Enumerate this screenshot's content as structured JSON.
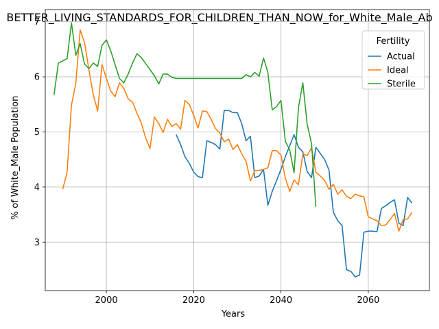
{
  "chart_data": {
    "type": "line",
    "title": "BETTER_LIVING_STANDARDS_FOR_CHILDREN_THAN_NOW_for_White_Male_Ab",
    "xlabel": "Years",
    "ylabel": "% of White_Male Population",
    "xlim": [
      1986,
      2074
    ],
    "ylim": [
      2.12,
      7.22
    ],
    "xticks": [
      2000,
      2020,
      2040,
      2060
    ],
    "yticks": [
      3,
      4,
      5,
      6,
      7
    ],
    "grid": true,
    "legend": {
      "title": "Fertility",
      "placement": "top-right"
    },
    "series": [
      {
        "name": "Actual",
        "color": "#1f77b4",
        "x": [
          2016,
          2017,
          2018,
          2019,
          2020,
          2021,
          2022,
          2023,
          2024,
          2025,
          2026,
          2027,
          2028,
          2029,
          2030,
          2031,
          2032,
          2033,
          2034,
          2035,
          2036,
          2037,
          2038,
          2039,
          2040,
          2041,
          2042,
          2043,
          2044,
          2045,
          2046,
          2047,
          2048,
          2049,
          2050,
          2051,
          2052,
          2053,
          2054,
          2055,
          2056,
          2057,
          2058,
          2059,
          2060,
          2061,
          2062,
          2063,
          2064,
          2065,
          2066,
          2067,
          2068,
          2069,
          2070
        ],
        "y": [
          4.95,
          4.77,
          4.55,
          4.43,
          4.27,
          4.19,
          4.17,
          4.84,
          4.81,
          4.77,
          4.69,
          5.39,
          5.39,
          5.35,
          5.35,
          5.15,
          4.84,
          4.92,
          4.17,
          4.2,
          4.32,
          3.67,
          3.92,
          4.12,
          4.32,
          4.55,
          4.75,
          4.95,
          4.72,
          4.64,
          4.28,
          4.17,
          4.72,
          4.61,
          4.5,
          4.31,
          3.54,
          3.39,
          3.3,
          2.5,
          2.47,
          2.37,
          2.4,
          3.18,
          3.2,
          3.2,
          3.19,
          3.61,
          3.66,
          3.72,
          3.77,
          3.34,
          3.3,
          3.81,
          3.71
        ]
      },
      {
        "name": "Ideal",
        "color": "#ff7f0e",
        "x": [
          1990,
          1991,
          1992,
          1993,
          1994,
          1995,
          1996,
          1997,
          1998,
          1999,
          2000,
          2001,
          2002,
          2003,
          2004,
          2005,
          2006,
          2007,
          2008,
          2009,
          2010,
          2011,
          2012,
          2013,
          2014,
          2015,
          2016,
          2017,
          2018,
          2019,
          2020,
          2021,
          2022,
          2023,
          2024,
          2025,
          2026,
          2027,
          2028,
          2029,
          2030,
          2031,
          2032,
          2033,
          2034,
          2035,
          2036,
          2037,
          2038,
          2039,
          2040,
          2041,
          2042,
          2043,
          2044,
          2045,
          2046,
          2047,
          2048,
          2049,
          2050,
          2051,
          2052,
          2053,
          2054,
          2055,
          2056,
          2057,
          2058,
          2059,
          2060,
          2061,
          2062,
          2063,
          2064,
          2065,
          2066,
          2067,
          2068,
          2069,
          2070
        ],
        "y": [
          3.96,
          4.27,
          5.49,
          5.88,
          6.85,
          6.62,
          6.13,
          5.67,
          5.38,
          6.22,
          5.97,
          5.74,
          5.64,
          5.89,
          5.79,
          5.6,
          5.54,
          5.34,
          5.16,
          4.89,
          4.7,
          5.27,
          5.15,
          4.99,
          5.23,
          5.1,
          5.15,
          5.05,
          5.57,
          5.5,
          5.3,
          5.07,
          5.38,
          5.37,
          5.23,
          5.06,
          4.98,
          4.82,
          4.87,
          4.68,
          4.77,
          4.6,
          4.47,
          4.11,
          4.3,
          4.3,
          4.32,
          4.35,
          4.66,
          4.66,
          4.58,
          4.16,
          3.92,
          4.13,
          4.04,
          4.6,
          4.57,
          4.71,
          4.27,
          4.2,
          4.12,
          3.96,
          4.05,
          3.87,
          3.95,
          3.83,
          3.79,
          3.87,
          3.84,
          3.82,
          3.46,
          3.42,
          3.39,
          3.3,
          3.31,
          3.41,
          3.52,
          3.2,
          3.41,
          3.42,
          3.54
        ]
      },
      {
        "name": "Sterile",
        "color": "#2ca02c",
        "x": [
          1988,
          1989,
          1990,
          1991,
          1992,
          1993,
          1994,
          1995,
          1996,
          1997,
          1998,
          1999,
          2000,
          2001,
          2002,
          2003,
          2004,
          2005,
          2006,
          2007,
          2008,
          2009,
          2010,
          2011,
          2012,
          2013,
          2014,
          2015,
          2016,
          2017,
          2018,
          2019,
          2020,
          2021,
          2022,
          2023,
          2024,
          2025,
          2026,
          2027,
          2028,
          2029,
          2030,
          2031,
          2032,
          2033,
          2034,
          2035,
          2036,
          2037,
          2038,
          2039,
          2040,
          2041,
          2042,
          2043,
          2044,
          2045,
          2046,
          2047,
          2048
        ],
        "y": [
          5.67,
          6.25,
          6.29,
          6.33,
          6.98,
          6.39,
          6.6,
          6.23,
          6.15,
          6.25,
          6.19,
          6.57,
          6.67,
          6.47,
          6.22,
          5.97,
          5.89,
          6.05,
          6.25,
          6.42,
          6.35,
          6.24,
          6.13,
          6.02,
          5.87,
          6.05,
          6.05,
          5.99,
          5.97,
          5.97,
          5.97,
          5.97,
          5.97,
          5.97,
          5.97,
          5.97,
          5.97,
          5.97,
          5.97,
          5.97,
          5.97,
          5.97,
          5.97,
          5.97,
          6.04,
          6.0,
          6.08,
          6.01,
          6.34,
          6.08,
          5.4,
          5.46,
          5.57,
          4.83,
          4.67,
          4.26,
          5.44,
          5.89,
          5.14,
          4.79,
          3.64
        ]
      }
    ]
  }
}
